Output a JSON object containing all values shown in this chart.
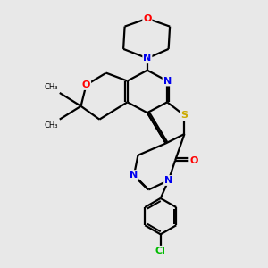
{
  "background_color": "#e8e8e8",
  "bond_color": "#000000",
  "atom_colors": {
    "N": "#0000ee",
    "O": "#ff0000",
    "S": "#ccaa00",
    "Cl": "#00bb00",
    "C": "#000000"
  }
}
